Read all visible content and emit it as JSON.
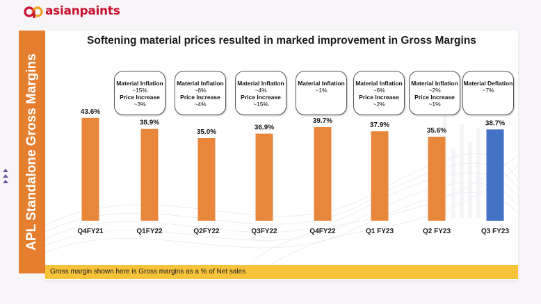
{
  "brand": {
    "name": "asianpaints",
    "color": "#c8102e"
  },
  "side_title": "APL Standalone Gross Margins",
  "headline": "Softening material prices resulted in marked improvement in Gross Margins",
  "footnote": "Gross margin shown here is Gross margins as a % of Net sales",
  "colors": {
    "accent_orange": "#e57e2f",
    "bar_orange": "#e8873c",
    "bar_blue": "#4472c4",
    "footer_yellow": "#f6c33a"
  },
  "callouts": [
    {
      "line1": "Material Inflation",
      "line2": "~15%",
      "line3": "Price Increase",
      "line4": "~3%"
    },
    {
      "line1": "Material Inflation",
      "line2": "~6%",
      "line3": "Price Increase",
      "line4": "~4%"
    },
    {
      "line1": "Material Inflation",
      "line2": "~4%",
      "line3": "Price Increase",
      "line4": "~15%"
    },
    {
      "line1": "Material Inflation",
      "line2": "~1%",
      "line3": "",
      "line4": ""
    },
    {
      "line1": "Material Inflation",
      "line2": "~6%",
      "line3": "Price Increase",
      "line4": "~2%"
    },
    {
      "line1": "Material Inflation",
      "line2": "~2%",
      "line3": "Price Increase",
      "line4": "~1%"
    },
    {
      "line1": "Material Deflation",
      "line2": "~7%",
      "line3": "",
      "line4": ""
    }
  ],
  "chart_data": {
    "type": "bar",
    "title": "Softening material prices resulted in marked improvement in Gross Margins",
    "ylabel": "APL Standalone Gross Margins",
    "categories": [
      "Q4FY21",
      "Q1FY22",
      "Q2FY22",
      "Q3FY22",
      "Q4FY22",
      "Q1 FY23",
      "Q2 FY23",
      "Q3 FY23"
    ],
    "values": [
      43.6,
      38.9,
      35.0,
      36.9,
      39.7,
      37.9,
      35.6,
      38.7
    ],
    "data_labels": [
      "43.6%",
      "38.9%",
      "35.0%",
      "36.9%",
      "39.7%",
      "37.9%",
      "35.6%",
      "38.7%"
    ],
    "bar_colors": [
      "#e8873c",
      "#e8873c",
      "#e8873c",
      "#e8873c",
      "#e8873c",
      "#e8873c",
      "#e8873c",
      "#4472c4"
    ],
    "ylim": [
      0,
      50
    ],
    "grid": false,
    "legend": "none"
  }
}
